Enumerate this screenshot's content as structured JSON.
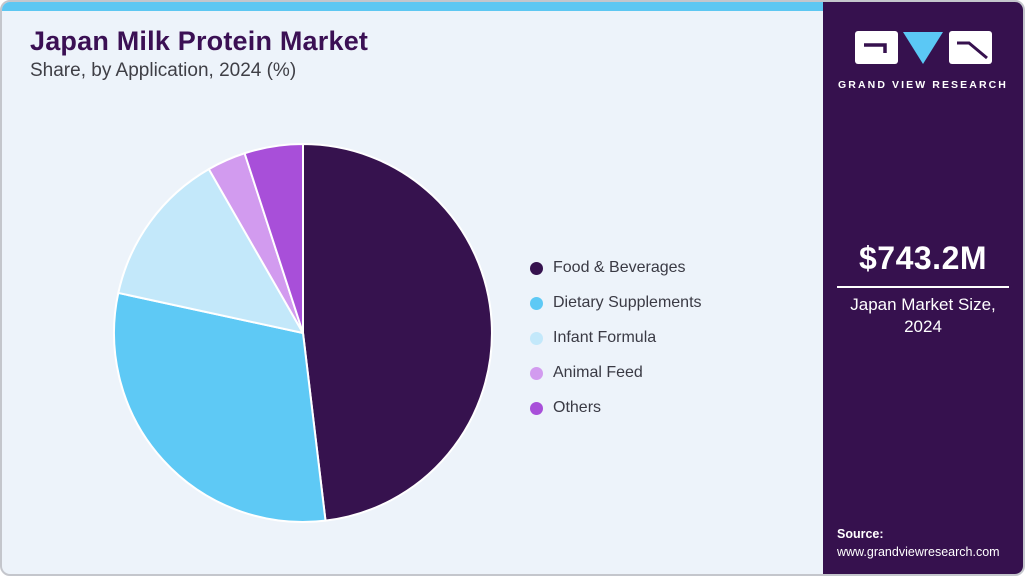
{
  "header": {
    "title": "Japan Milk Protein Market",
    "subtitle": "Share, by Application, 2024 (%)"
  },
  "sidebar": {
    "brand": "GRAND VIEW RESEARCH",
    "market_size_value": "$743.2M",
    "market_size_label": "Japan Market Size, 2024",
    "source_label": "Source:",
    "source_url": "www.grandviewresearch.com",
    "bg_color": "#36114e",
    "accent_color": "#5dc7f2",
    "logo_tile_color": "#ffffff",
    "logo_triangle_color": "#5bc8f5"
  },
  "chart_data": {
    "type": "pie",
    "title": "Japan Milk Protein Market Share, by Application, 2024 (%)",
    "categories": [
      "Food & Beverages",
      "Dietary Supplements",
      "Infant Formula",
      "Animal Feed",
      "Others"
    ],
    "values": [
      48.1,
      30.3,
      13.3,
      3.3,
      5.0
    ],
    "colors": [
      "#36124e",
      "#5ec9f5",
      "#c3e8fa",
      "#d29bef",
      "#a84fd9"
    ],
    "start_angle_deg": 0,
    "direction": "clockwise",
    "legend_position": "right",
    "slice_separator_color": "#ffffff"
  }
}
